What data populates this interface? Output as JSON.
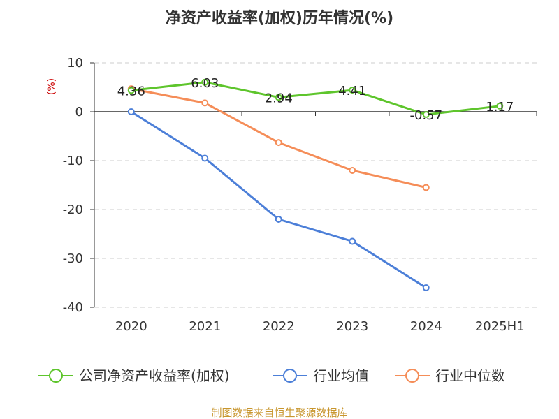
{
  "chart_data": {
    "type": "line",
    "title": "净资产收益率(加权)历年情况(%)",
    "ylabel": "(%)",
    "categories": [
      "2020",
      "2021",
      "2022",
      "2023",
      "2024",
      "2025H1"
    ],
    "ylim": [
      -40,
      10
    ],
    "yticks": [
      10,
      0,
      -10,
      -20,
      -30,
      -40
    ],
    "grid": true,
    "legend_position": "bottom",
    "series": [
      {
        "name": "公司净资产收益率(加权)",
        "color": "#5ec52c",
        "labels": [
          "4.36",
          "6.03",
          "2.94",
          "4.41",
          "-0.57",
          "1.17"
        ],
        "values": [
          4.36,
          6.03,
          2.94,
          4.41,
          -0.57,
          1.17
        ]
      },
      {
        "name": "行业均值",
        "color": "#4c7fd8",
        "values": [
          0.0,
          -9.5,
          -22.0,
          -26.5,
          -36.0,
          null
        ]
      },
      {
        "name": "行业中位数",
        "color": "#f58d58",
        "values": [
          4.7,
          1.8,
          -6.3,
          -12.0,
          -15.5,
          null
        ]
      }
    ]
  },
  "footer": "制图数据来自恒生聚源数据库"
}
